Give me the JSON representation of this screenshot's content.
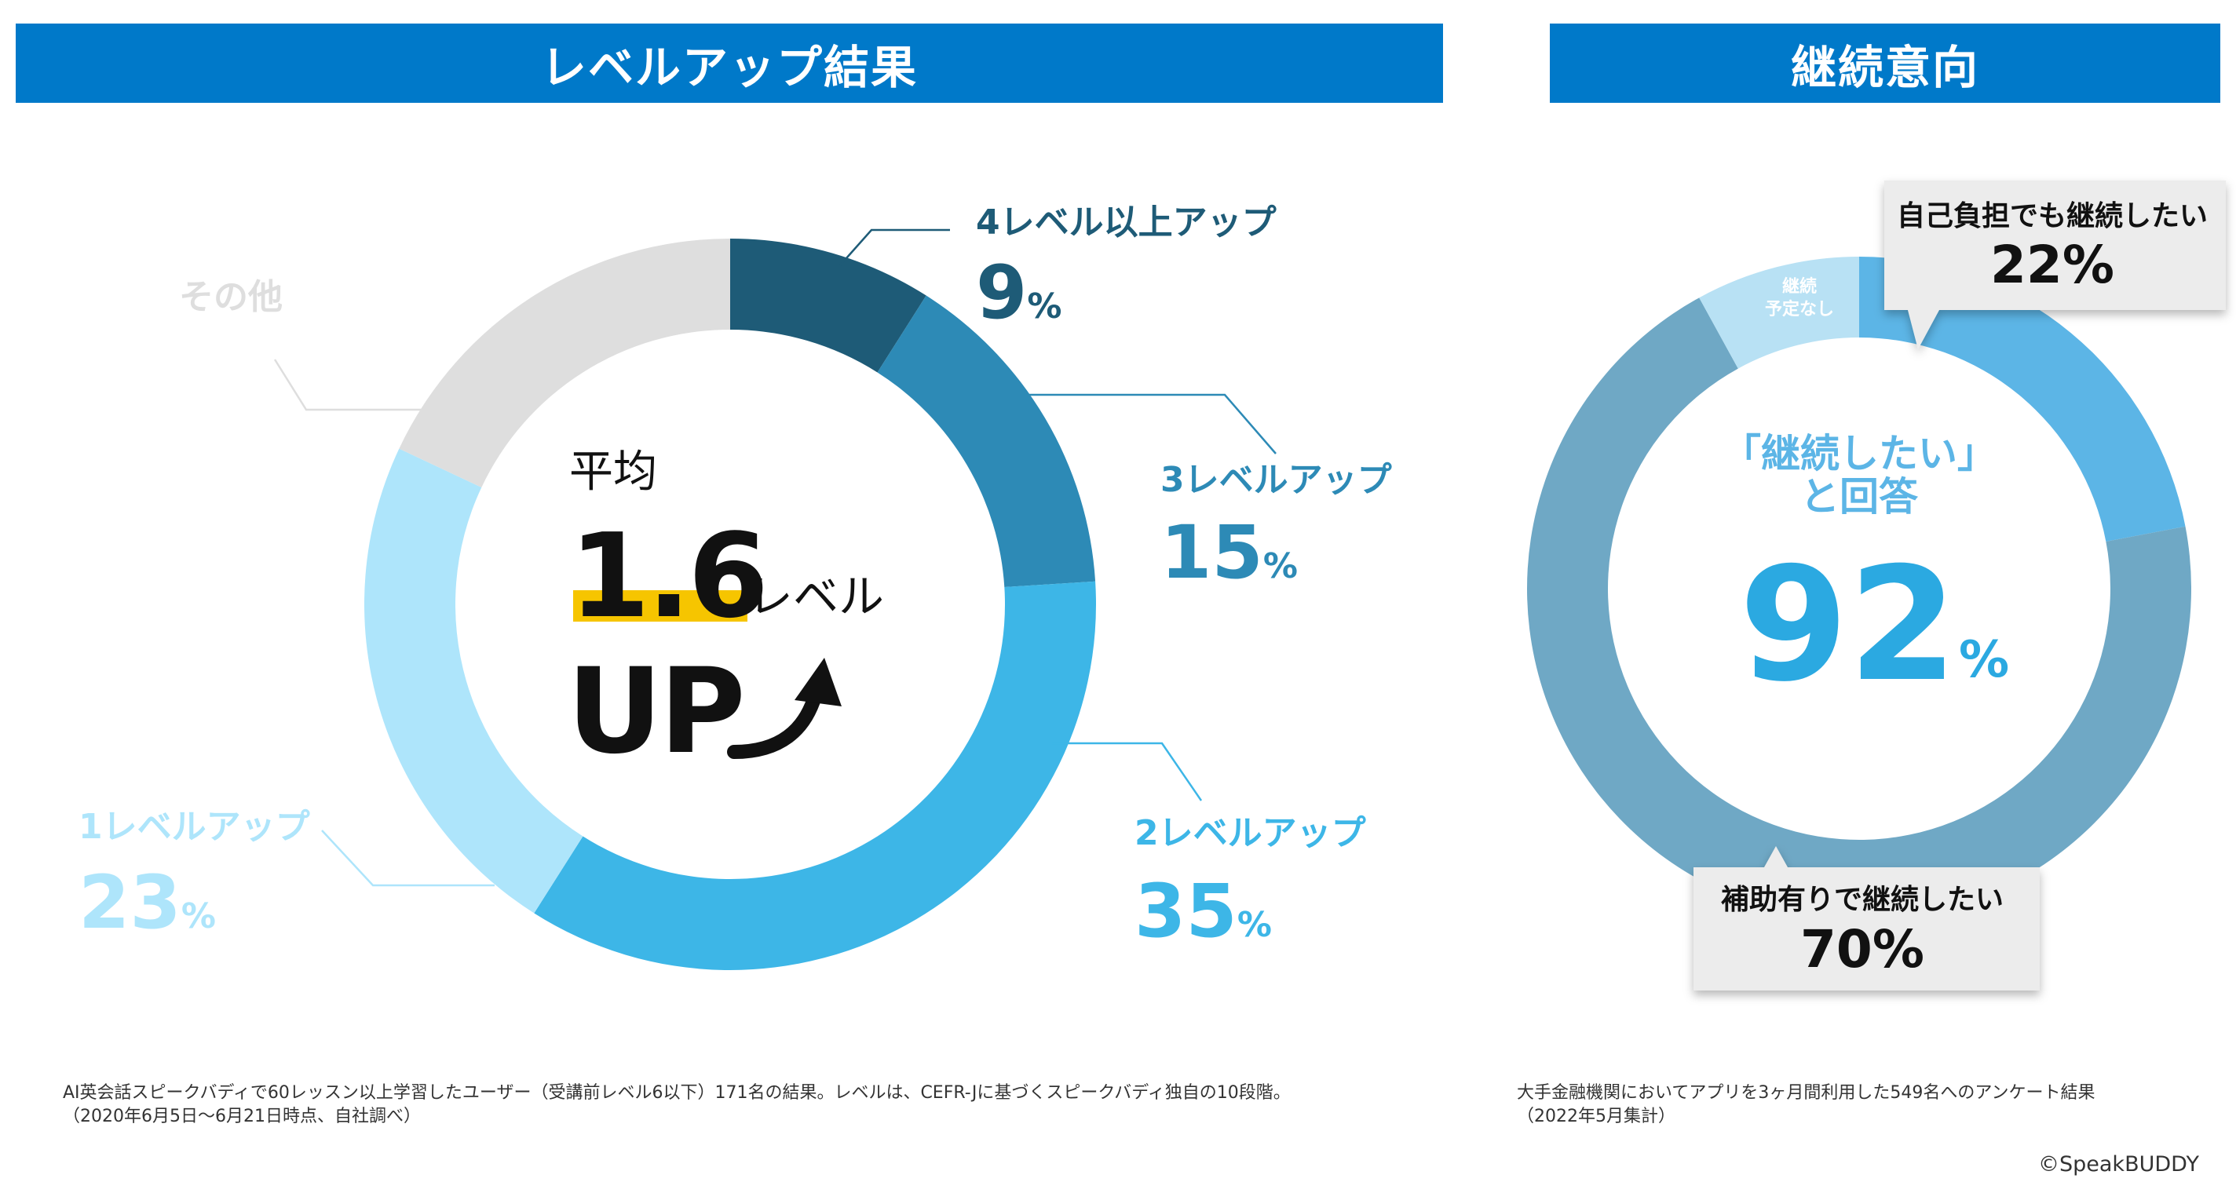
{
  "header_left": "レベルアップ結果",
  "header_right": "継続意向",
  "chart_data": [
    {
      "type": "pie",
      "donut": true,
      "title": "レベルアップ結果",
      "slices": [
        {
          "label": "4レベル以上アップ",
          "value": 9,
          "display": "9",
          "color": "#1e5b77"
        },
        {
          "label": "3レベルアップ",
          "value": 15,
          "display": "15",
          "color": "#2d8ab6"
        },
        {
          "label": "2レベルアップ",
          "value": 35,
          "display": "35",
          "color": "#3db6e7"
        },
        {
          "label": "1レベルアップ",
          "value": 23,
          "display": "23",
          "color": "#aee5fb"
        },
        {
          "label": "その他",
          "value": 18,
          "display": "",
          "color": "#dedede"
        }
      ],
      "unit": "%",
      "center": {
        "line1": "平均",
        "number": "1.6",
        "suffix": "レベル",
        "line3": "UP"
      }
    },
    {
      "type": "pie",
      "donut": true,
      "title": "継続意向",
      "slices": [
        {
          "label": "自己負担でも継続したい",
          "value": 22,
          "display": "22",
          "color": "#5cb5e6"
        },
        {
          "label": "補助有りで継続したい",
          "value": 70,
          "display": "70",
          "color": "#6fa8c5"
        },
        {
          "label": "継続予定なし",
          "value": 8,
          "display": "",
          "color": "#b8e1f4"
        }
      ],
      "unit": "%",
      "center": {
        "line1": "「継続したい」",
        "line2": "と回答",
        "number": "92",
        "unit": "%"
      }
    }
  ],
  "callouts": {
    "self_label": "自己負担でも継続したい",
    "self_value": "22%",
    "subsidy_label": "補助有りで継続したい",
    "subsidy_value": "70%",
    "none_line1": "継続",
    "none_line2": "予定なし"
  },
  "notes": {
    "left_line1": "AI英会話スピークバディで60レッスン以上学習したユーザー（受講前レベル6以下）171名の結果。レベルは、CEFR-Jに基づくスピークバディ独自の10段階。",
    "left_line2": "（2020年6月5日〜6月21日時点、自社調べ）",
    "right_line1": "大手金融機関においてアプリを3ヶ月間利用した549名へのアンケート結果",
    "right_line2": "（2022年5月集計）"
  },
  "copyright": "©SpeakBUDDY",
  "colors": {
    "header": "#0079c9",
    "highlight": "#f6c500",
    "accent_text": "#2ba9e1"
  }
}
